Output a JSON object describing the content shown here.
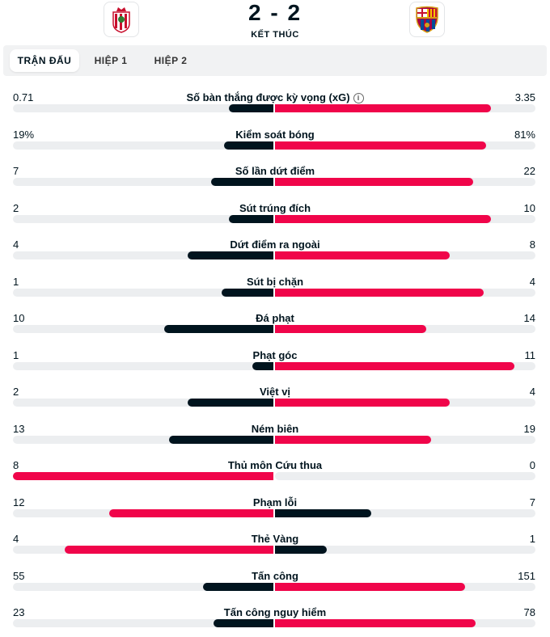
{
  "match": {
    "score": "2 - 2",
    "status": "KẾT THÚC"
  },
  "icons": {
    "home_logo": "granada-crest-icon",
    "away_logo": "barcelona-crest-icon",
    "info": "info-icon"
  },
  "tabs": [
    {
      "label": "TRẬN ĐẤU",
      "active": true
    },
    {
      "label": "HIỆP 1",
      "active": false
    },
    {
      "label": "HIỆP 2",
      "active": false
    }
  ],
  "colors": {
    "dark": "#00141e",
    "red": "#f0054a",
    "track": "#eceef0"
  },
  "stats": [
    {
      "label": "Số bàn thắng được kỳ vọng (xG)",
      "home": "0.71",
      "away": "3.35",
      "home_share": 0.17,
      "away_share": 0.83,
      "info": true
    },
    {
      "label": "Kiểm soát bóng",
      "home": "19%",
      "away": "81%",
      "home_share": 0.19,
      "away_share": 0.81
    },
    {
      "label": "Số lần dứt điểm",
      "home": "7",
      "away": "22",
      "home_share": 0.24,
      "away_share": 0.76
    },
    {
      "label": "Sút trúng đích",
      "home": "2",
      "away": "10",
      "home_share": 0.17,
      "away_share": 0.83
    },
    {
      "label": "Dứt điểm ra ngoài",
      "home": "4",
      "away": "8",
      "home_share": 0.33,
      "away_share": 0.67
    },
    {
      "label": "Sút bị chặn",
      "home": "1",
      "away": "4",
      "home_share": 0.2,
      "away_share": 0.8
    },
    {
      "label": "Đá phạt",
      "home": "10",
      "away": "14",
      "home_share": 0.42,
      "away_share": 0.58
    },
    {
      "label": "Phạt góc",
      "home": "1",
      "away": "11",
      "home_share": 0.08,
      "away_share": 0.92
    },
    {
      "label": "Việt vị",
      "home": "2",
      "away": "4",
      "home_share": 0.33,
      "away_share": 0.67
    },
    {
      "label": "Ném biên",
      "home": "13",
      "away": "19",
      "home_share": 0.4,
      "away_share": 0.6
    },
    {
      "label": "Thủ môn Cứu thua",
      "home": "8",
      "away": "0",
      "home_share": 1.0,
      "away_share": 0.0
    },
    {
      "label": "Phạm lỗi",
      "home": "12",
      "away": "7",
      "home_share": 0.63,
      "away_share": 0.37
    },
    {
      "label": "Thẻ Vàng",
      "home": "4",
      "away": "1",
      "home_share": 0.8,
      "away_share": 0.2
    },
    {
      "label": "Tấn công",
      "home": "55",
      "away": "151",
      "home_share": 0.27,
      "away_share": 0.73
    },
    {
      "label": "Tấn công nguy hiểm",
      "home": "23",
      "away": "78",
      "home_share": 0.23,
      "away_share": 0.77
    }
  ]
}
